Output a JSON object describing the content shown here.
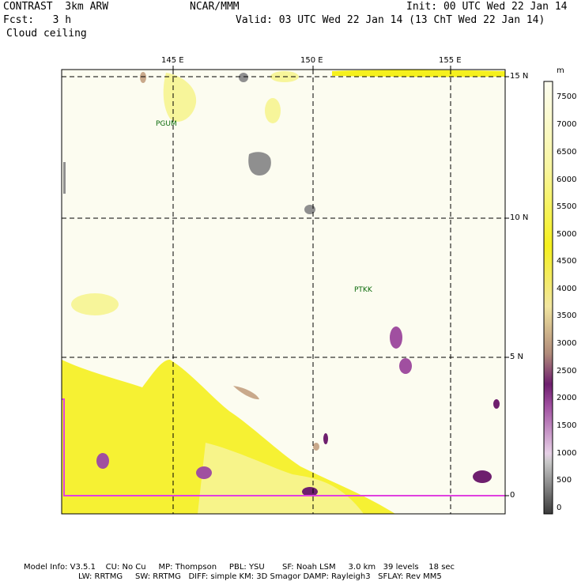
{
  "header": {
    "model": "CONTRAST  3km ARW",
    "center": "NCAR/MMM",
    "init": "Init: 00 UTC Wed 22 Jan 14",
    "fcst": "Fcst:   3 h",
    "valid": "Valid: 03 UTC Wed 22 Jan 14 (13 ChT Wed 22 Jan 14)",
    "field": "Cloud ceiling"
  },
  "map": {
    "lon_labels": [
      "145 E",
      "150 E",
      "155 E"
    ],
    "lat_labels": [
      "15 N",
      "10 N",
      "5 N",
      "0"
    ],
    "stations": [
      "PGUM",
      "PTKK"
    ]
  },
  "colorbar": {
    "unit": "m",
    "labels": [
      "7500",
      "7000",
      "6500",
      "6000",
      "5500",
      "5000",
      "4500",
      "4000",
      "3500",
      "3000",
      "2500",
      "2000",
      "1500",
      "1000",
      "500",
      "0"
    ]
  },
  "footer": {
    "line1": "Model Info: V3.5.1    CU: No Cu     MP: Thompson     PBL: YSU       SF: Noah LSM     3.0 km   39 levels    18 sec",
    "line2": "LW: RRTMG     SW: RRTMG   DIFF: simple KM: 3D Smagor DAMP: Rayleigh3   SFLAY: Rev MM5"
  },
  "colors": {
    "background": "#fcfcf0",
    "yellow": "#f5f01e",
    "pale_yellow": "#f7f59a",
    "tan": "#c9a98b",
    "purple": "#8a2f8a",
    "gray": "#8f8f8f",
    "magenta": "#e040e0"
  }
}
